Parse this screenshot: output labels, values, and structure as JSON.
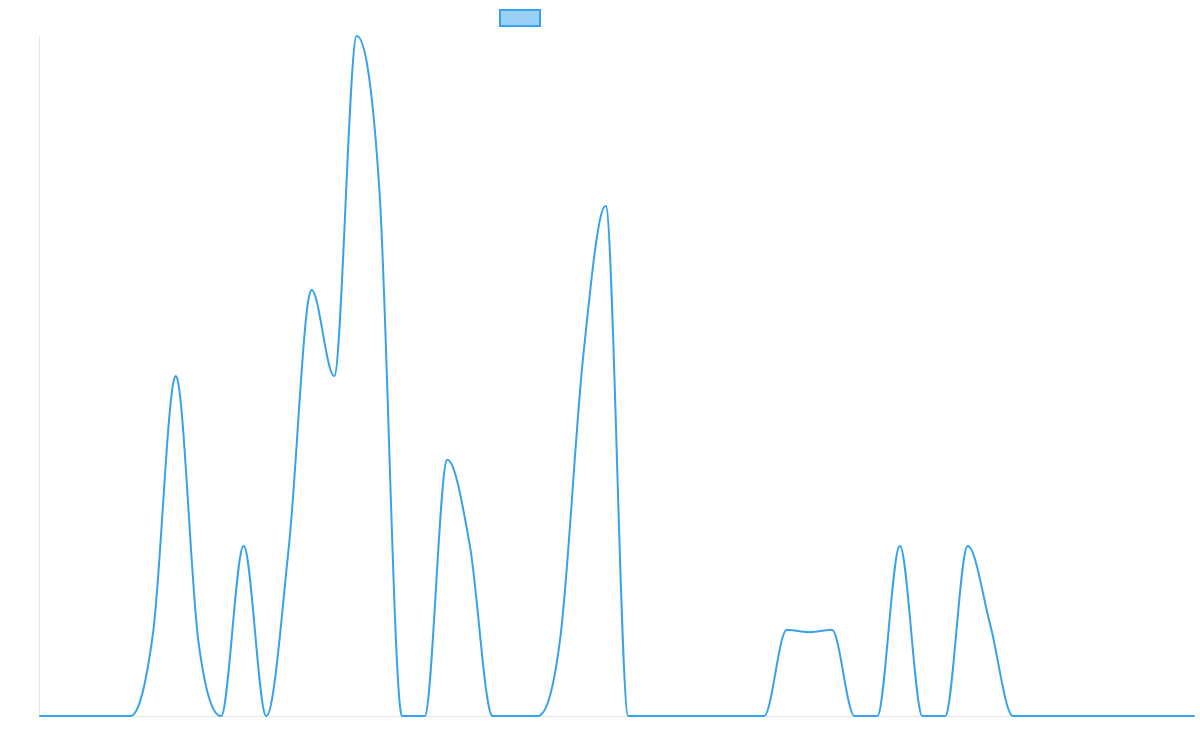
{
  "colors": {
    "series_stroke": "#36a2eb",
    "legend_fill": "#9ad0f5",
    "axis": "#e6e6e6"
  },
  "chart_data": {
    "type": "line",
    "title": "",
    "xlabel": "",
    "ylabel": "",
    "x_ticks_visible": false,
    "y_ticks_visible": false,
    "grid": false,
    "legend": {
      "position": "top-center",
      "entries": [
        {
          "name": ""
        }
      ]
    },
    "xlim": [
      0,
      51
    ],
    "ylim": [
      0,
      30
    ],
    "interpolation": "monotone",
    "series": [
      {
        "name": "",
        "x": [
          0,
          1,
          2,
          3,
          4,
          5,
          6,
          7,
          8,
          9,
          10,
          11,
          12,
          13,
          14,
          15,
          16,
          17,
          18,
          19,
          20,
          21,
          22,
          23,
          24,
          25,
          26,
          27,
          28,
          29,
          30,
          31,
          32,
          33,
          34,
          35,
          36,
          37,
          38,
          39,
          40,
          41,
          42,
          43,
          44,
          45,
          46,
          47,
          48,
          49,
          50,
          51
        ],
        "y": [
          0,
          0,
          0,
          0,
          0,
          3.7,
          15,
          3.3,
          0,
          7.5,
          0,
          7.5,
          18.8,
          15,
          30,
          23.2,
          0,
          0,
          11.3,
          7.5,
          0,
          0,
          0,
          3.5,
          15.8,
          22.5,
          0,
          0,
          0,
          0,
          0,
          0,
          0,
          3.8,
          3.7,
          3.8,
          0,
          0,
          7.5,
          0,
          0,
          7.5,
          4,
          0,
          0,
          0,
          0,
          0,
          0,
          0,
          0,
          0
        ]
      }
    ]
  }
}
